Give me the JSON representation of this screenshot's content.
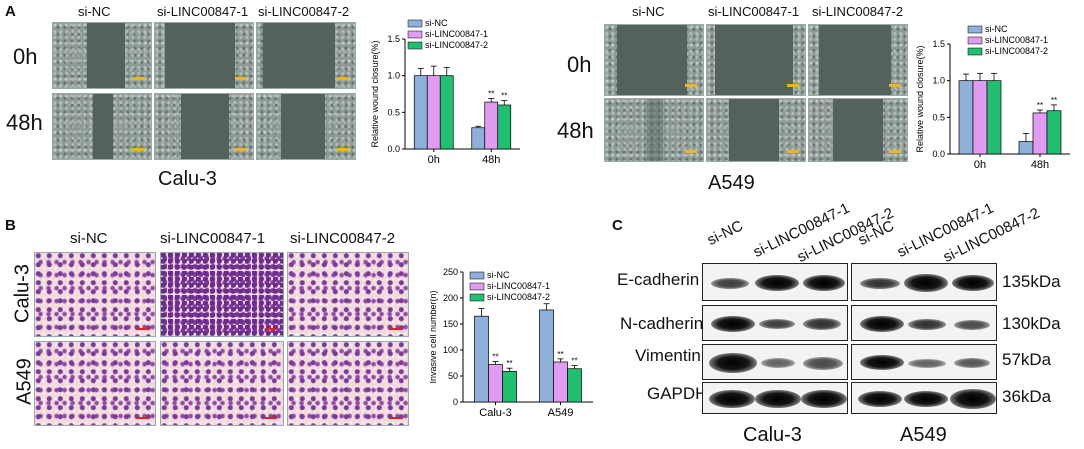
{
  "panels": {
    "A": {
      "letter": "A",
      "columns": [
        "si-NC",
        "si-LINC00847-1",
        "si-LINC00847-2"
      ],
      "rows": [
        "0h",
        "48h"
      ],
      "cell_lines": [
        "Calu-3",
        "A549"
      ]
    },
    "B": {
      "letter": "B",
      "columns": [
        "si-NC",
        "si-LINC00847-1",
        "si-LINC00847-2"
      ],
      "rows": [
        "Calu-3",
        "A549"
      ]
    },
    "C": {
      "letter": "C",
      "lanes": [
        "si-NC",
        "si-LINC00847-1",
        "si-LINC00847-2",
        "si-NC",
        "si-LINC00847-1",
        "si-LINC00847-2"
      ],
      "proteins": [
        "E-cadherin",
        "N-cadherin",
        "Vimentin",
        "GAPDH"
      ],
      "kda": [
        "135kDa",
        "130kDa",
        "57kDa",
        "36kDa"
      ],
      "cell_lines": [
        "Calu-3",
        "A549"
      ]
    }
  },
  "colors": {
    "si-NC": "#8fb0d8",
    "si-LINC00847-1": "#e09cf0",
    "si-LINC00847-2": "#22bf73"
  },
  "chart_data": [
    {
      "type": "bar",
      "ylabel": "Relative wound closure(%)",
      "categories": [
        "0h",
        "48h"
      ],
      "ylim": [
        0,
        1.5
      ],
      "yticks": [
        "0.0",
        "0.5",
        "1.0",
        "1.5"
      ],
      "series": [
        {
          "name": "si-NC",
          "values": [
            1.0,
            0.29
          ],
          "errors": [
            0.1,
            0.02
          ]
        },
        {
          "name": "si-LINC00847-1",
          "values": [
            1.0,
            0.64
          ],
          "errors": [
            0.13,
            0.05
          ]
        },
        {
          "name": "si-LINC00847-2",
          "values": [
            1.0,
            0.6
          ],
          "errors": [
            0.11,
            0.06
          ]
        }
      ],
      "annotations": [
        "**",
        "**"
      ],
      "legend": "top-right"
    },
    {
      "type": "bar",
      "ylabel": "Relative wound closure(%)",
      "categories": [
        "0h",
        "48h"
      ],
      "ylim": [
        0,
        1.5
      ],
      "yticks": [
        "0.0",
        "0.5",
        "1.0",
        "1.5"
      ],
      "series": [
        {
          "name": "si-NC",
          "values": [
            1.0,
            0.17
          ],
          "errors": [
            0.09,
            0.11
          ]
        },
        {
          "name": "si-LINC00847-1",
          "values": [
            1.0,
            0.56
          ],
          "errors": [
            0.1,
            0.04
          ]
        },
        {
          "name": "si-LINC00847-2",
          "values": [
            1.0,
            0.59
          ],
          "errors": [
            0.1,
            0.08
          ]
        }
      ],
      "annotations": [
        "**",
        "**"
      ],
      "legend": "top-right"
    },
    {
      "type": "bar",
      "ylabel": "Invasive cell number(n)",
      "categories": [
        "Calu-3",
        "A549"
      ],
      "ylim": [
        0,
        250
      ],
      "yticks": [
        "0",
        "50",
        "100",
        "150",
        "200",
        "250"
      ],
      "series": [
        {
          "name": "si-NC",
          "values": [
            165,
            177
          ],
          "errors": [
            15,
            12
          ]
        },
        {
          "name": "si-LINC00847-1",
          "values": [
            72,
            77
          ],
          "errors": [
            6,
            6
          ]
        },
        {
          "name": "si-LINC00847-2",
          "values": [
            59,
            64
          ],
          "errors": [
            6,
            6
          ]
        }
      ],
      "annotations": [
        "**",
        "**"
      ],
      "legend": "top-right"
    }
  ]
}
